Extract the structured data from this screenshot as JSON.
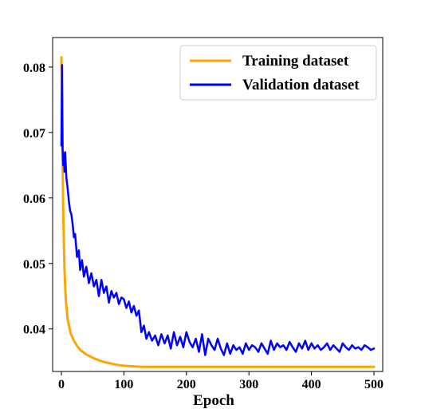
{
  "chart_data": {
    "type": "line",
    "title": "",
    "xlabel": "Epoch",
    "ylabel": "",
    "xlim": [
      -14,
      514
    ],
    "ylim": [
      0.0335,
      0.0845
    ],
    "xticks": [
      0,
      100,
      200,
      300,
      400,
      500
    ],
    "xtick_labels": [
      "0",
      "100",
      "200",
      "300",
      "400",
      "500"
    ],
    "yticks": [
      0.04,
      0.05,
      0.06,
      0.07,
      0.08
    ],
    "ytick_labels": [
      "0.04",
      "0.05",
      "0.06",
      "0.07",
      "0.08"
    ],
    "grid": false,
    "legend_position": "top-right",
    "series": [
      {
        "name": "Training dataset",
        "color": "#FFA500",
        "x": [
          0,
          1,
          2,
          3,
          5,
          7,
          10,
          15,
          20,
          25,
          30,
          40,
          50,
          60,
          70,
          80,
          90,
          100,
          110,
          120,
          130,
          150,
          200,
          250,
          300,
          350,
          400,
          450,
          500
        ],
        "y": [
          0.0815,
          0.075,
          0.066,
          0.058,
          0.049,
          0.0445,
          0.0415,
          0.0393,
          0.0382,
          0.0374,
          0.0368,
          0.0361,
          0.0356,
          0.0352,
          0.0349,
          0.0347,
          0.0345,
          0.03437,
          0.0343,
          0.03425,
          0.0342,
          0.0342,
          0.0342,
          0.0342,
          0.0342,
          0.0342,
          0.0342,
          0.0342,
          0.0342
        ]
      },
      {
        "name": "Validation dataset",
        "color": "#0000FF",
        "x": [
          0,
          1,
          2,
          3,
          4,
          5,
          6,
          8,
          10,
          12,
          14,
          16,
          18,
          20,
          22,
          25,
          28,
          30,
          33,
          36,
          40,
          44,
          48,
          52,
          56,
          60,
          64,
          68,
          72,
          76,
          80,
          84,
          88,
          92,
          96,
          100,
          104,
          108,
          112,
          116,
          120,
          124,
          128,
          132,
          136,
          140,
          145,
          150,
          155,
          160,
          165,
          170,
          175,
          180,
          185,
          190,
          195,
          200,
          205,
          210,
          215,
          220,
          225,
          230,
          235,
          240,
          245,
          250,
          255,
          260,
          265,
          270,
          275,
          280,
          285,
          290,
          295,
          300,
          305,
          310,
          315,
          320,
          325,
          330,
          335,
          340,
          345,
          350,
          355,
          360,
          365,
          370,
          375,
          380,
          385,
          390,
          395,
          400,
          405,
          410,
          415,
          420,
          425,
          430,
          435,
          440,
          445,
          450,
          455,
          460,
          465,
          470,
          475,
          480,
          485,
          490,
          495,
          500
        ],
        "y": [
          0.068,
          0.0803,
          0.0675,
          0.065,
          0.0668,
          0.064,
          0.067,
          0.063,
          0.0615,
          0.0595,
          0.058,
          0.0575,
          0.056,
          0.054,
          0.0545,
          0.051,
          0.052,
          0.049,
          0.0505,
          0.048,
          0.0495,
          0.047,
          0.0485,
          0.0465,
          0.0475,
          0.045,
          0.0475,
          0.0455,
          0.0465,
          0.044,
          0.0458,
          0.0448,
          0.0455,
          0.0438,
          0.0448,
          0.0445,
          0.0432,
          0.0442,
          0.0425,
          0.0435,
          0.042,
          0.0428,
          0.0395,
          0.0405,
          0.0385,
          0.0395,
          0.0382,
          0.039,
          0.0375,
          0.0392,
          0.0378,
          0.039,
          0.037,
          0.0395,
          0.0375,
          0.0388,
          0.0372,
          0.0395,
          0.038,
          0.0372,
          0.0385,
          0.0365,
          0.0392,
          0.036,
          0.0385,
          0.0375,
          0.0368,
          0.0385,
          0.037,
          0.036,
          0.0378,
          0.0362,
          0.0375,
          0.0368,
          0.0372,
          0.0362,
          0.0378,
          0.0368,
          0.0375,
          0.0372,
          0.0365,
          0.0378,
          0.037,
          0.0362,
          0.0382,
          0.0368,
          0.0378,
          0.0372,
          0.0375,
          0.0368,
          0.038,
          0.0372,
          0.0365,
          0.0378,
          0.037,
          0.0382,
          0.0368,
          0.0378,
          0.037,
          0.0375,
          0.0368,
          0.0372,
          0.0378,
          0.0368,
          0.0375,
          0.037,
          0.0365,
          0.0378,
          0.0372,
          0.0368,
          0.0375,
          0.037,
          0.0372,
          0.0368,
          0.0375,
          0.0372,
          0.0368,
          0.037
        ]
      }
    ]
  }
}
